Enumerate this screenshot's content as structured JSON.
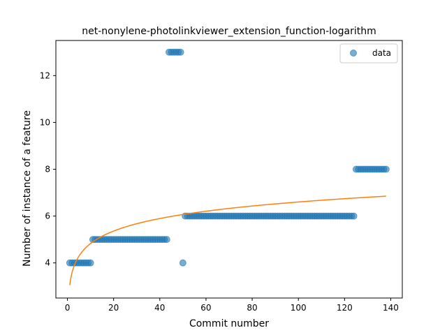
{
  "chart_data": {
    "type": "scatter",
    "title": "net-nonylene-photolinkviewer_extension_function-logarithm",
    "xlabel": "Commit number",
    "ylabel": "Number of instance of a feature",
    "xlim": [
      -5,
      145
    ],
    "ylim": [
      2.5,
      13.5
    ],
    "xticks": [
      0,
      20,
      40,
      60,
      80,
      100,
      120,
      140
    ],
    "yticks": [
      4,
      6,
      8,
      10,
      12
    ],
    "grid": false,
    "legend": {
      "position": "top-right",
      "entries": [
        {
          "label": "data",
          "marker": "circle",
          "color": "#1f77b4"
        }
      ]
    },
    "series": [
      {
        "name": "data",
        "kind": "scatter",
        "color": "#1f77b4",
        "segments": [
          {
            "x_start": 1,
            "x_end": 10,
            "y": 4
          },
          {
            "x_start": 11,
            "x_end": 43,
            "y": 5
          },
          {
            "x_start": 44,
            "x_end": 49,
            "y": 13
          },
          {
            "x_start": 50,
            "x_end": 50,
            "y": 4
          },
          {
            "x_start": 51,
            "x_end": 124,
            "y": 6
          },
          {
            "x_start": 125,
            "x_end": 138,
            "y": 8
          }
        ]
      },
      {
        "name": "",
        "kind": "line",
        "color": "#ff7f0e",
        "function": "logarithmic fit",
        "x_range": [
          1,
          138
        ],
        "y_at_x_start": 3.05,
        "y_at_x_end": 6.85
      }
    ]
  }
}
